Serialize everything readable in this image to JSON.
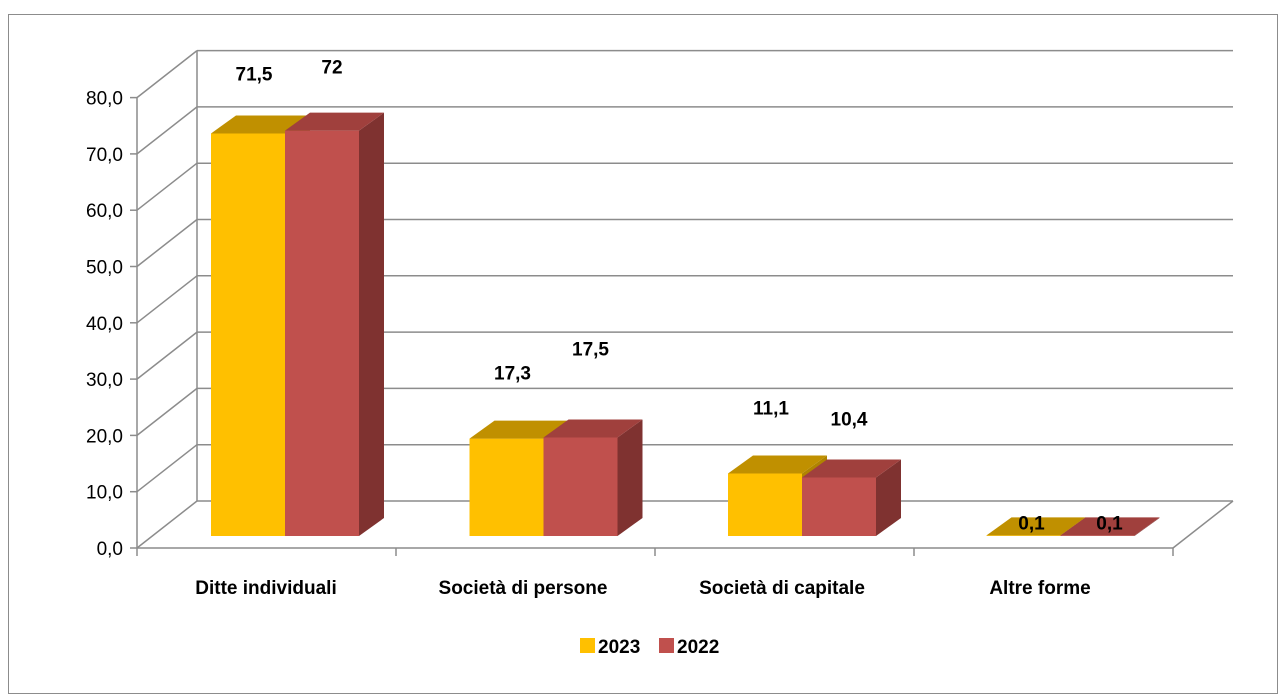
{
  "chart_data": {
    "type": "bar",
    "categories": [
      "Ditte individuali",
      "Società di persone",
      "Società di capitale",
      "Altre forme"
    ],
    "series": [
      {
        "name": "2023",
        "values": [
          71.5,
          17.3,
          11.1,
          0.1
        ],
        "labels": [
          "71,5",
          "17,3",
          "11,1",
          "0,1"
        ],
        "color": "#FFC000",
        "top": "#C09000",
        "side": "#B08400"
      },
      {
        "name": "2022",
        "values": [
          72,
          17.5,
          10.4,
          0.1
        ],
        "labels": [
          "72",
          "17,5",
          "10,4",
          "0,1"
        ],
        "color": "#C0504D",
        "top": "#A0403D",
        "side": "#7F3230"
      }
    ],
    "y_ticks": [
      "0,0",
      "10,0",
      "20,0",
      "30,0",
      "40,0",
      "50,0",
      "60,0",
      "70,0",
      "80,0"
    ],
    "ylim": [
      0,
      80
    ],
    "grid": true,
    "legend": "bottom",
    "title": "",
    "xlabel": "",
    "ylabel": ""
  }
}
